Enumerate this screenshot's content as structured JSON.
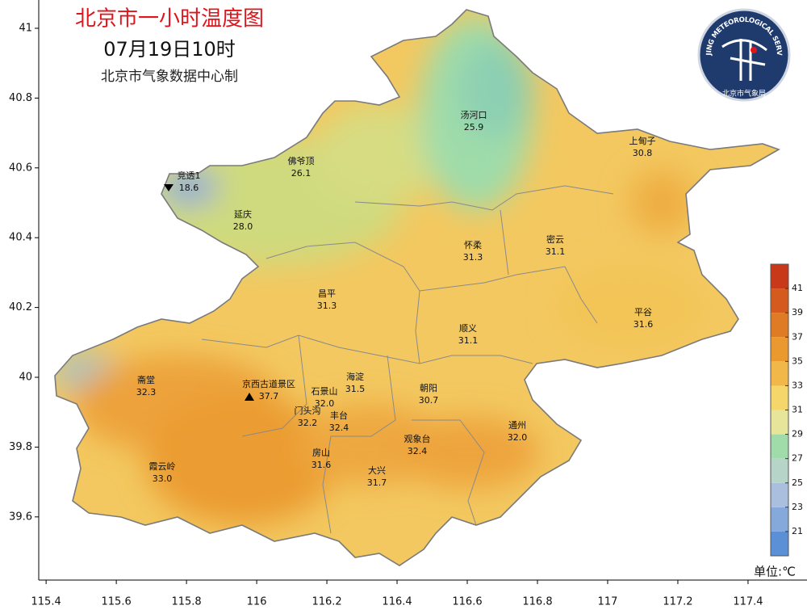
{
  "header": {
    "title": "北京市一小时温度图",
    "subtitle": "07月19日10时",
    "credit": "北京市气象数据中心制"
  },
  "logo": {
    "english": "BEIJING METEOROLOGICAL SERVICE",
    "chinese": "北京市气象局"
  },
  "axes": {
    "xlim": [
      115.379,
      117.568
    ],
    "ylim": [
      39.419,
      41.081
    ],
    "lat_ticks": [
      41,
      40.8,
      40.6,
      40.4,
      40.2,
      40,
      39.8,
      39.6
    ],
    "lon_ticks": [
      115.4,
      115.6,
      115.8,
      116,
      116.2,
      116.4,
      116.6,
      116.8,
      117,
      117.2,
      117.4
    ]
  },
  "stations": [
    {
      "name": "汤河口",
      "value": 25.9
    },
    {
      "name": "上甸子",
      "value": 30.8
    },
    {
      "name": "佛爷顶",
      "value": 26.1
    },
    {
      "name": "竞透1",
      "value": 18.6
    },
    {
      "name": "延庆",
      "value": {
        "value": 28,
        "label": "28.0"
      }
    },
    {
      "name": "怀柔",
      "value": 31.3
    },
    {
      "name": "密云",
      "value": 31.1
    },
    {
      "name": "昌平",
      "value": 31.3
    },
    {
      "name": "平谷",
      "value": 31.6
    },
    {
      "name": "顺义",
      "value": 31.1
    },
    {
      "name": "斋堂",
      "value": 32.3
    },
    {
      "name": "京西古道景区",
      "value": 37.7
    },
    {
      "name": "海淀",
      "value": 31.5
    },
    {
      "name": "朝阳",
      "value": 30.7
    },
    {
      "name": "石景山",
      "value": {
        "value": 32,
        "label": "32.0"
      }
    },
    {
      "name": "门头沟",
      "value": 32.2
    },
    {
      "name": "丰台",
      "value": 32.4
    },
    {
      "name": "通州",
      "value": {
        "value": 32,
        "label": "32.0"
      }
    },
    {
      "name": "观象台",
      "value": 32.4
    },
    {
      "name": "霞云岭",
      "value": {
        "value": 33,
        "label": "33.0"
      }
    },
    {
      "name": "房山",
      "value": 31.6
    },
    {
      "name": "大兴",
      "value": 31.7
    }
  ],
  "legend": {
    "unit": "单位:℃",
    "range": [
      19,
      43
    ],
    "ticks": [
      21,
      23,
      25,
      27,
      29,
      31,
      33,
      35,
      37,
      39,
      41
    ],
    "colors": [
      "#5b8fd6",
      "#86a9dc",
      "#a9bfdd",
      "#b7d4c8",
      "#9fdcaa",
      "#e6e59a",
      "#f5d66a",
      "#f1b849",
      "#ea992f",
      "#df7a25",
      "#d45a1e",
      "#c8391a"
    ]
  }
}
